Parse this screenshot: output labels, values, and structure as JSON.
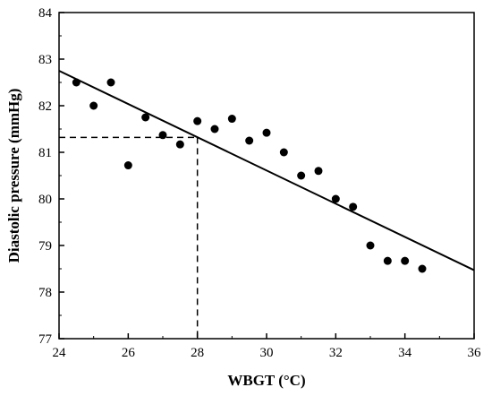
{
  "chart_data": {
    "type": "scatter",
    "title": "",
    "xlabel": "WBGT (°C)",
    "ylabel": "Diastolic pressure (mmHg)",
    "xlim": [
      24,
      36
    ],
    "ylim": [
      77,
      84
    ],
    "x_ticks": [
      "24",
      "26",
      "28",
      "30",
      "32",
      "34",
      "36"
    ],
    "y_ticks": [
      "77",
      "78",
      "79",
      "80",
      "81",
      "82",
      "83",
      "84"
    ],
    "grid": false,
    "legend": "none",
    "series": [
      {
        "points": [
          {
            "x": 24.5,
            "y": 82.5
          },
          {
            "x": 25.0,
            "y": 82.0
          },
          {
            "x": 25.5,
            "y": 82.5
          },
          {
            "x": 26.0,
            "y": 80.72
          },
          {
            "x": 26.5,
            "y": 81.75
          },
          {
            "x": 27.0,
            "y": 81.37
          },
          {
            "x": 27.5,
            "y": 81.17
          },
          {
            "x": 28.0,
            "y": 81.67
          },
          {
            "x": 28.5,
            "y": 81.5
          },
          {
            "x": 29.0,
            "y": 81.72
          },
          {
            "x": 29.5,
            "y": 81.25
          },
          {
            "x": 30.0,
            "y": 81.42
          },
          {
            "x": 30.5,
            "y": 81.0
          },
          {
            "x": 31.0,
            "y": 80.5
          },
          {
            "x": 31.5,
            "y": 80.6
          },
          {
            "x": 32.0,
            "y": 80.0
          },
          {
            "x": 32.5,
            "y": 79.83
          },
          {
            "x": 33.0,
            "y": 79.0
          },
          {
            "x": 33.5,
            "y": 78.67
          },
          {
            "x": 34.0,
            "y": 78.67
          },
          {
            "x": 34.5,
            "y": 78.5
          }
        ]
      }
    ],
    "fit_line": {
      "x": [
        24,
        36
      ],
      "y": [
        82.75,
        78.47
      ]
    },
    "reference_lines": {
      "x": 28,
      "y": 81.32
    }
  }
}
